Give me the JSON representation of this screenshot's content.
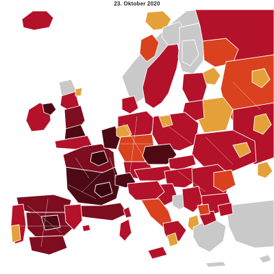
{
  "map": {
    "title": "23. Oktober 2020",
    "colors": {
      "sea": "#ffffff",
      "no_data": "#c9c9c9",
      "level_1": "#e4a139",
      "level_2": "#d9411f",
      "level_3": "#b3122a",
      "level_4": "#7e0d1f",
      "level_5": "#4d0a14"
    }
  }
}
